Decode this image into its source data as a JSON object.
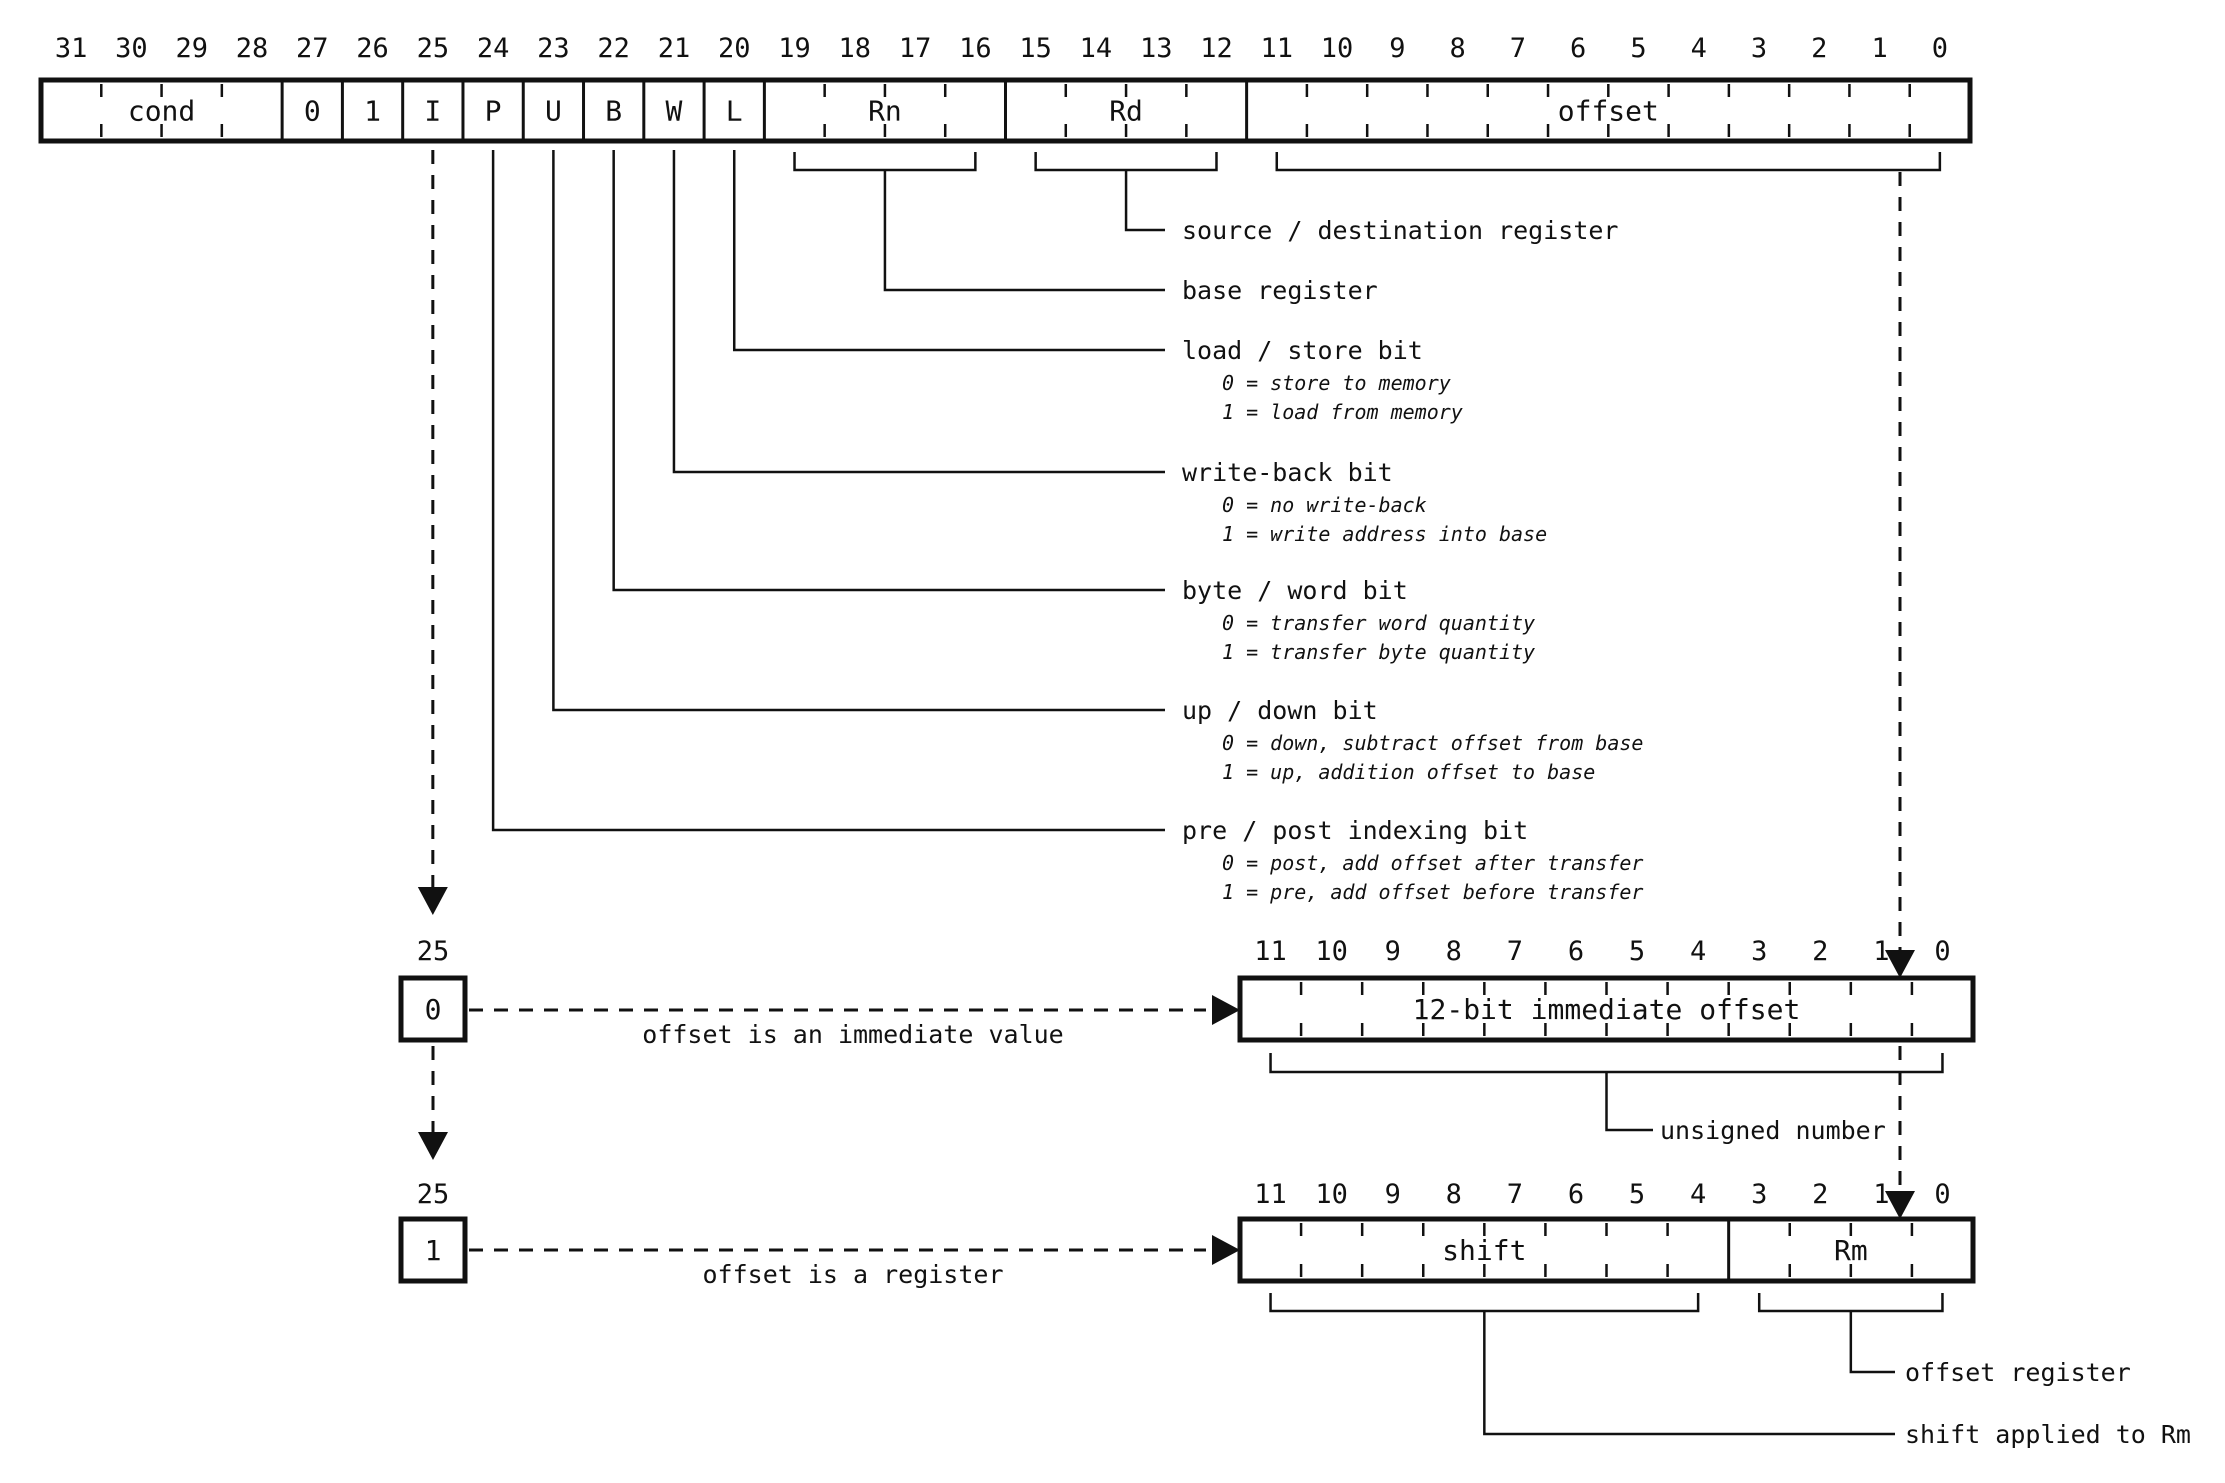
{
  "colors": {
    "ink": "#111111",
    "background": "#ffffff"
  },
  "main_register": {
    "bit_labels": [
      "31",
      "30",
      "29",
      "28",
      "27",
      "26",
      "25",
      "24",
      "23",
      "22",
      "21",
      "20",
      "19",
      "18",
      "17",
      "16",
      "15",
      "14",
      "13",
      "12",
      "11",
      "10",
      "9",
      "8",
      "7",
      "6",
      "5",
      "4",
      "3",
      "2",
      "1",
      "0"
    ],
    "fields": [
      {
        "label": "cond",
        "from": 31,
        "to": 28
      },
      {
        "label": "0",
        "from": 27,
        "to": 27
      },
      {
        "label": "1",
        "from": 26,
        "to": 26
      },
      {
        "label": "I",
        "from": 25,
        "to": 25
      },
      {
        "label": "P",
        "from": 24,
        "to": 24
      },
      {
        "label": "U",
        "from": 23,
        "to": 23
      },
      {
        "label": "B",
        "from": 22,
        "to": 22
      },
      {
        "label": "W",
        "from": 21,
        "to": 21
      },
      {
        "label": "L",
        "from": 20,
        "to": 20
      },
      {
        "label": "Rn",
        "from": 19,
        "to": 16
      },
      {
        "label": "Rd",
        "from": 15,
        "to": 12
      },
      {
        "label": "offset",
        "from": 11,
        "to": 0
      }
    ],
    "bracketed_fields": [
      "Rn",
      "Rd",
      "offset"
    ]
  },
  "annotations": [
    {
      "source": "Rd",
      "label": "source / destination register",
      "sublines": []
    },
    {
      "source": "Rn",
      "label": "base register",
      "sublines": []
    },
    {
      "source": "L",
      "label": "load / store bit",
      "sublines": [
        "0 = store to memory",
        "1 = load from memory"
      ]
    },
    {
      "source": "W",
      "label": "write-back bit",
      "sublines": [
        "0 = no write-back",
        "1 = write address into base"
      ]
    },
    {
      "source": "B",
      "label": "byte / word bit",
      "sublines": [
        "0 = transfer word quantity",
        "1 = transfer byte quantity"
      ]
    },
    {
      "source": "U",
      "label": "up / down bit",
      "sublines": [
        "0 = down, subtract offset from base",
        "1 = up, addition offset to base"
      ]
    },
    {
      "source": "P",
      "label": "pre / post indexing bit",
      "sublines": [
        "0 = post, add offset after transfer",
        "1 = pre, add offset before transfer"
      ]
    }
  ],
  "variants": [
    {
      "bit_label": "25",
      "value": "0",
      "caption": "offset is an immediate value",
      "register": {
        "bit_labels": [
          "11",
          "10",
          "9",
          "8",
          "7",
          "6",
          "5",
          "4",
          "3",
          "2",
          "1",
          "0"
        ],
        "fields": [
          {
            "label": "12-bit immediate offset",
            "from": 11,
            "to": 0
          }
        ]
      },
      "brackets": [
        {
          "label": "unsigned number",
          "from": 11,
          "to": 0
        }
      ]
    },
    {
      "bit_label": "25",
      "value": "1",
      "caption": "offset is a register",
      "register": {
        "bit_labels": [
          "11",
          "10",
          "9",
          "8",
          "7",
          "6",
          "5",
          "4",
          "3",
          "2",
          "1",
          "0"
        ],
        "fields": [
          {
            "label": "shift",
            "from": 11,
            "to": 4
          },
          {
            "label": "Rm",
            "from": 3,
            "to": 0
          }
        ]
      },
      "brackets": [
        {
          "label": "shift applied to Rm",
          "from": 11,
          "to": 4
        },
        {
          "label": "offset register",
          "from": 3,
          "to": 0
        }
      ]
    }
  ]
}
